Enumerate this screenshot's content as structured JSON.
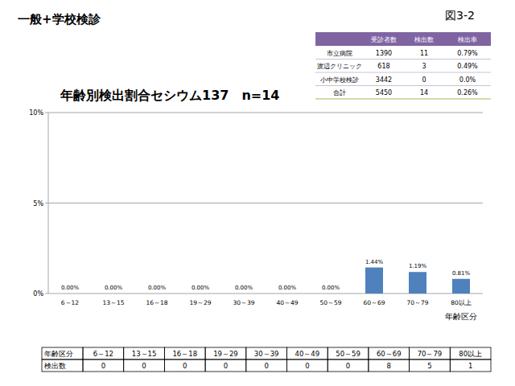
{
  "header": {
    "title": "一般+学校検診",
    "figure_label": "図3-2"
  },
  "summary_table": {
    "columns": [
      "受診者数",
      "検出数",
      "検出率"
    ],
    "rows": [
      [
        "市立病院",
        1390,
        11,
        "0.79%"
      ],
      [
        "渡辺クリニック",
        618,
        3,
        "0.49%"
      ],
      [
        "小中学校検診",
        3442,
        0,
        "0.0%"
      ],
      [
        "合計",
        5450,
        14,
        "0.26%"
      ]
    ]
  },
  "chart_data": {
    "type": "bar",
    "title": "年齢別検出割合セシウム137　n=14",
    "x_label": "年齢区分",
    "categories": [
      "6～12",
      "13～15",
      "16～18",
      "19～29",
      "30～39",
      "40～49",
      "50～59",
      "60～69",
      "70～79",
      "80以上"
    ],
    "values": [
      0,
      0,
      0,
      0,
      0,
      0,
      0,
      1.44,
      1.19,
      0.81
    ],
    "value_labels": [
      "0.00%",
      "0.00%",
      "0.00%",
      "0.00%",
      "0.00%",
      "0.00%",
      "0.00%",
      "1.44%",
      "1.19%",
      "0.81%"
    ],
    "data_labels": true,
    "color": "#4f81bd",
    "ylim": [
      0,
      10
    ],
    "yticks": [
      {
        "value": 0,
        "label": "0%"
      },
      {
        "value": 5,
        "label": "5%"
      },
      {
        "value": 10,
        "label": "10%"
      }
    ],
    "grid": true
  },
  "count_table": {
    "header": [
      "年齢区分",
      "6～12",
      "13～15",
      "16～18",
      "19～29",
      "30～39",
      "40～49",
      "50～59",
      "60～69",
      "70～79",
      "80以上"
    ],
    "rows": [
      [
        "検出数",
        0,
        0,
        0,
        0,
        0,
        0,
        0,
        8,
        5,
        1
      ]
    ]
  }
}
